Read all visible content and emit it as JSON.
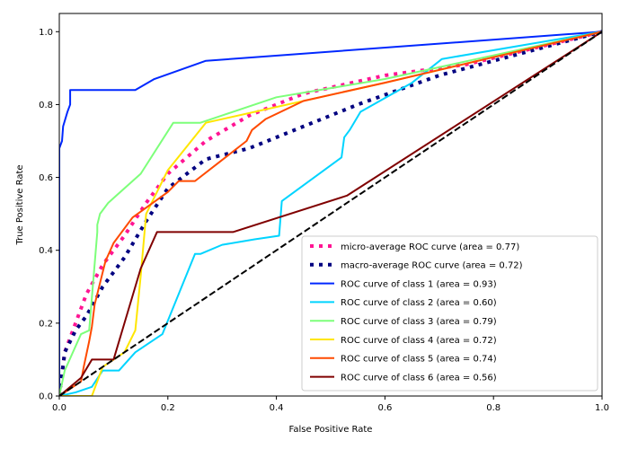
{
  "chart_data": {
    "type": "line",
    "title": "",
    "xlabel": "False Positive Rate",
    "ylabel": "True Positive Rate",
    "xlim": [
      0.0,
      1.0
    ],
    "ylim": [
      0.0,
      1.05
    ],
    "xticks": [
      "0.0",
      "0.2",
      "0.4",
      "0.6",
      "0.8",
      "1.0"
    ],
    "yticks": [
      "0.0",
      "0.2",
      "0.4",
      "0.6",
      "0.8",
      "1.0"
    ],
    "xtick_values": [
      0.0,
      0.2,
      0.4,
      0.6,
      0.8,
      1.0
    ],
    "ytick_values": [
      0.0,
      0.2,
      0.4,
      0.6,
      0.8,
      1.0
    ],
    "grid": false,
    "legend_position": "lower-right",
    "series": [
      {
        "name": "micro-average ROC curve (area = 0.77)",
        "color": "#ff1493",
        "style": "dotted",
        "x": [
          0.0,
          0.01,
          0.03,
          0.05,
          0.08,
          0.12,
          0.16,
          0.2,
          0.27,
          0.35,
          0.45,
          0.6,
          0.75,
          1.0
        ],
        "y": [
          0.0,
          0.12,
          0.2,
          0.28,
          0.36,
          0.44,
          0.53,
          0.61,
          0.7,
          0.77,
          0.83,
          0.88,
          0.91,
          1.0
        ]
      },
      {
        "name": "macro-average ROC curve (area = 0.72)",
        "color": "#000080",
        "style": "dotted",
        "x": [
          0.0,
          0.01,
          0.03,
          0.05,
          0.08,
          0.12,
          0.16,
          0.2,
          0.27,
          0.35,
          0.45,
          0.55,
          0.7,
          0.85,
          1.0
        ],
        "y": [
          0.0,
          0.12,
          0.18,
          0.22,
          0.3,
          0.38,
          0.48,
          0.57,
          0.65,
          0.68,
          0.74,
          0.8,
          0.88,
          0.94,
          1.0
        ]
      },
      {
        "name": "ROC curve of class 1 (area = 0.93)",
        "color": "#0028ff",
        "style": "solid",
        "x": [
          0.0,
          0.0,
          0.005,
          0.007,
          0.015,
          0.02,
          0.02,
          0.14,
          0.175,
          0.27,
          1.0
        ],
        "y": [
          0.0,
          0.68,
          0.7,
          0.74,
          0.78,
          0.8,
          0.84,
          0.84,
          0.87,
          0.92,
          1.0
        ]
      },
      {
        "name": "ROC curve of class 2 (area = 0.60)",
        "color": "#00d4ff",
        "style": "solid",
        "x": [
          0.0,
          0.03,
          0.06,
          0.08,
          0.11,
          0.14,
          0.19,
          0.25,
          0.26,
          0.3,
          0.36,
          0.405,
          0.41,
          0.52,
          0.525,
          0.535,
          0.555,
          0.65,
          0.705,
          1.0
        ],
        "y": [
          0.0,
          0.01,
          0.025,
          0.07,
          0.07,
          0.12,
          0.17,
          0.39,
          0.39,
          0.415,
          0.43,
          0.44,
          0.535,
          0.655,
          0.71,
          0.73,
          0.78,
          0.86,
          0.925,
          1.0
        ]
      },
      {
        "name": "ROC curve of class 3 (area = 0.79)",
        "color": "#7dff7a",
        "style": "solid",
        "x": [
          0.0,
          0.01,
          0.04,
          0.055,
          0.06,
          0.07,
          0.07,
          0.075,
          0.09,
          0.15,
          0.21,
          0.26,
          0.4,
          0.6,
          1.0
        ],
        "y": [
          0.0,
          0.07,
          0.17,
          0.18,
          0.27,
          0.45,
          0.47,
          0.5,
          0.53,
          0.61,
          0.75,
          0.75,
          0.82,
          0.87,
          1.0
        ]
      },
      {
        "name": "ROC curve of class 4 (area = 0.72)",
        "color": "#ffe600",
        "style": "solid",
        "x": [
          0.0,
          0.06,
          0.08,
          0.1,
          0.12,
          0.14,
          0.15,
          0.16,
          0.2,
          0.27,
          0.6,
          1.0
        ],
        "y": [
          0.0,
          0.0,
          0.08,
          0.1,
          0.12,
          0.18,
          0.33,
          0.5,
          0.62,
          0.75,
          0.86,
          1.0
        ]
      },
      {
        "name": "ROC curve of class 5 (area = 0.74)",
        "color": "#ff4a00",
        "style": "solid",
        "x": [
          0.0,
          0.04,
          0.045,
          0.055,
          0.06,
          0.065,
          0.085,
          0.1,
          0.135,
          0.2,
          0.22,
          0.25,
          0.345,
          0.355,
          0.38,
          0.45,
          0.6,
          1.0
        ],
        "y": [
          0.0,
          0.04,
          0.08,
          0.15,
          0.19,
          0.25,
          0.37,
          0.42,
          0.49,
          0.56,
          0.59,
          0.59,
          0.7,
          0.73,
          0.76,
          0.81,
          0.86,
          1.0
        ]
      },
      {
        "name": "ROC curve of class 6 (area = 0.56)",
        "color": "#800000",
        "style": "solid",
        "x": [
          0.0,
          0.04,
          0.06,
          0.08,
          0.1,
          0.12,
          0.15,
          0.18,
          0.32,
          0.53,
          1.0
        ],
        "y": [
          0.0,
          0.05,
          0.1,
          0.1,
          0.1,
          0.2,
          0.35,
          0.45,
          0.45,
          0.55,
          1.0
        ]
      },
      {
        "name": "chance",
        "color": "#000000",
        "style": "dashed",
        "legend": false,
        "x": [
          0.0,
          1.0
        ],
        "y": [
          0.0,
          1.0
        ]
      }
    ]
  }
}
